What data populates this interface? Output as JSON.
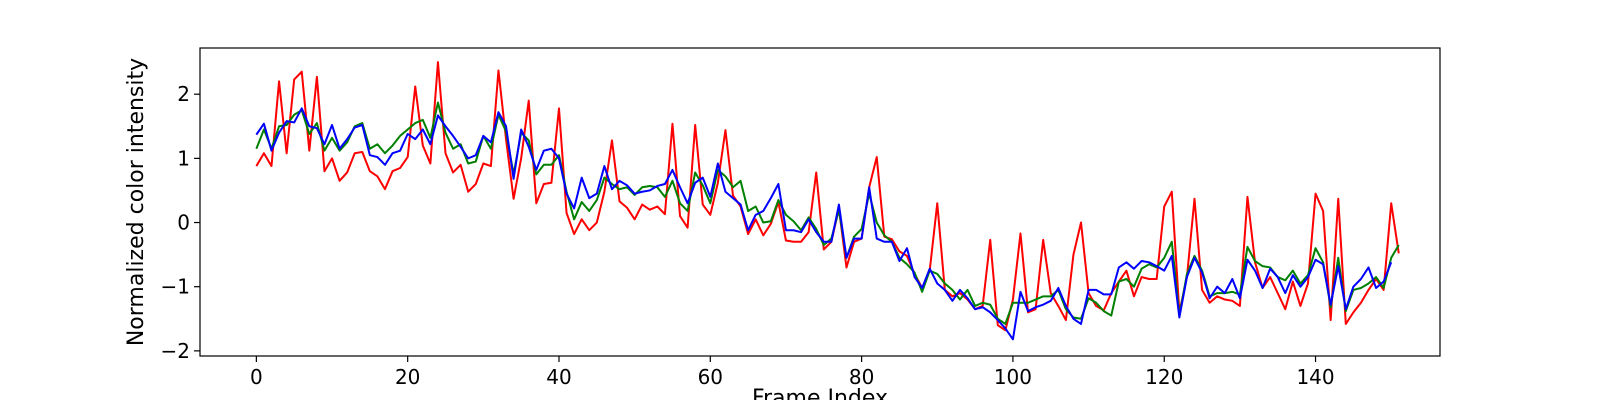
{
  "chart_data": {
    "type": "line",
    "title": "",
    "xlabel": "Frame Index",
    "ylabel": "Normalized color intensity",
    "xlim": [
      -7.45,
      156.45
    ],
    "ylim": [
      -2.08,
      2.72
    ],
    "xticks": [
      0,
      20,
      40,
      60,
      80,
      100,
      120,
      140
    ],
    "yticks": [
      -2,
      -1,
      0,
      1,
      2
    ],
    "grid": false,
    "legend": "none",
    "x_range": [
      0,
      149
    ],
    "series": [
      {
        "color": "#ff0000",
        "values": [
          0.88,
          1.08,
          0.88,
          2.2,
          1.08,
          2.23,
          2.35,
          1.12,
          2.27,
          0.8,
          1.0,
          0.65,
          0.78,
          1.08,
          1.1,
          0.8,
          0.72,
          0.52,
          0.8,
          0.85,
          1.02,
          2.12,
          1.2,
          0.92,
          2.5,
          1.08,
          0.78,
          0.9,
          0.48,
          0.6,
          0.92,
          0.88,
          2.37,
          1.3,
          0.37,
          1.0,
          1.9,
          0.3,
          0.6,
          0.62,
          1.78,
          0.15,
          -0.18,
          0.05,
          -0.12,
          0.0,
          0.48,
          1.28,
          0.33,
          0.23,
          0.05,
          0.28,
          0.2,
          0.25,
          0.13,
          1.54,
          0.1,
          -0.08,
          1.52,
          0.28,
          0.12,
          0.62,
          1.44,
          0.42,
          0.25,
          -0.18,
          0.05,
          -0.2,
          -0.02,
          0.32,
          -0.28,
          -0.3,
          -0.3,
          -0.15,
          0.78,
          -0.42,
          -0.3,
          0.22,
          -0.7,
          -0.3,
          -0.25,
          0.55,
          1.02,
          -0.22,
          -0.26,
          -0.45,
          -0.52,
          -0.8,
          -1.02,
          -0.75,
          0.3,
          -1.05,
          -1.15,
          -1.1,
          -1.2,
          -1.35,
          -1.3,
          -0.27,
          -1.6,
          -1.68,
          -1.2,
          -0.17,
          -1.4,
          -1.35,
          -0.27,
          -1.1,
          -1.3,
          -1.52,
          -0.5,
          0.0,
          -1.1,
          -1.3,
          -1.37,
          -1.1,
          -0.92,
          -0.75,
          -1.15,
          -0.85,
          -0.88,
          -0.88,
          0.25,
          0.48,
          -1.4,
          -0.85,
          0.37,
          -1.05,
          -1.25,
          -1.15,
          -1.2,
          -1.22,
          -1.3,
          0.4,
          -0.62,
          -1.02,
          -0.85,
          -1.1,
          -1.35,
          -0.92,
          -1.3,
          -0.95,
          0.45,
          0.18,
          -1.52,
          0.37,
          -1.58,
          -1.4,
          -1.25,
          -1.05,
          -0.88,
          -1.05,
          0.3,
          -0.48
        ]
      },
      {
        "color": "#008000",
        "values": [
          1.15,
          1.45,
          1.15,
          1.5,
          1.52,
          1.68,
          1.75,
          1.38,
          1.55,
          1.12,
          1.32,
          1.12,
          1.25,
          1.5,
          1.55,
          1.15,
          1.22,
          1.08,
          1.2,
          1.35,
          1.45,
          1.55,
          1.6,
          1.32,
          1.87,
          1.4,
          1.15,
          1.22,
          0.92,
          0.95,
          1.35,
          1.15,
          1.68,
          1.42,
          0.75,
          1.4,
          1.28,
          0.75,
          0.9,
          0.9,
          1.05,
          0.48,
          0.05,
          0.32,
          0.18,
          0.35,
          0.7,
          0.6,
          0.52,
          0.55,
          0.43,
          0.55,
          0.57,
          0.55,
          0.4,
          0.65,
          0.3,
          0.18,
          0.78,
          0.58,
          0.3,
          0.82,
          0.72,
          0.55,
          0.65,
          0.18,
          0.25,
          0.0,
          0.02,
          0.35,
          0.12,
          0.02,
          -0.12,
          0.08,
          -0.1,
          -0.35,
          -0.25,
          0.2,
          -0.55,
          -0.22,
          -0.1,
          0.45,
          0.0,
          -0.2,
          -0.3,
          -0.55,
          -0.65,
          -0.78,
          -1.08,
          -0.75,
          -0.8,
          -0.95,
          -1.05,
          -1.2,
          -1.05,
          -1.3,
          -1.25,
          -1.28,
          -1.5,
          -1.58,
          -1.25,
          -1.25,
          -1.25,
          -1.2,
          -1.15,
          -1.15,
          -1.05,
          -1.35,
          -1.48,
          -1.5,
          -1.18,
          -1.25,
          -1.38,
          -1.45,
          -0.92,
          -0.88,
          -1.0,
          -0.72,
          -0.65,
          -0.7,
          -0.55,
          -0.3,
          -1.45,
          -0.8,
          -0.52,
          -0.75,
          -1.15,
          -1.1,
          -1.1,
          -1.08,
          -1.12,
          -0.38,
          -0.6,
          -0.68,
          -0.7,
          -0.85,
          -0.9,
          -0.75,
          -0.95,
          -0.82,
          -0.4,
          -0.62,
          -1.32,
          -0.55,
          -1.38,
          -1.05,
          -1.02,
          -0.95,
          -0.85,
          -1.02,
          -0.55,
          -0.35
        ]
      },
      {
        "color": "#0000ff",
        "values": [
          1.37,
          1.54,
          1.12,
          1.4,
          1.58,
          1.56,
          1.78,
          1.5,
          1.47,
          1.22,
          1.52,
          1.15,
          1.3,
          1.48,
          1.52,
          1.05,
          1.02,
          0.9,
          1.08,
          1.12,
          1.38,
          1.3,
          1.45,
          1.22,
          1.67,
          1.5,
          1.35,
          1.18,
          1.0,
          1.05,
          1.35,
          1.25,
          1.72,
          1.5,
          0.68,
          1.45,
          1.18,
          0.82,
          1.12,
          1.15,
          1.0,
          0.45,
          0.22,
          0.7,
          0.38,
          0.45,
          0.88,
          0.52,
          0.65,
          0.58,
          0.45,
          0.48,
          0.5,
          0.57,
          0.6,
          0.82,
          0.55,
          0.3,
          0.62,
          0.7,
          0.4,
          0.92,
          0.48,
          0.38,
          0.28,
          -0.12,
          0.12,
          0.18,
          0.38,
          0.6,
          -0.12,
          -0.12,
          -0.15,
          0.05,
          -0.15,
          -0.3,
          -0.3,
          0.28,
          -0.55,
          -0.25,
          -0.25,
          0.55,
          -0.25,
          -0.3,
          -0.3,
          -0.6,
          -0.4,
          -0.85,
          -1.02,
          -0.72,
          -0.95,
          -1.05,
          -1.22,
          -1.05,
          -1.18,
          -1.35,
          -1.32,
          -1.4,
          -1.52,
          -1.65,
          -1.82,
          -1.08,
          -1.38,
          -1.32,
          -1.28,
          -1.22,
          -1.02,
          -1.3,
          -1.5,
          -1.58,
          -1.05,
          -1.05,
          -1.12,
          -1.12,
          -0.7,
          -0.62,
          -0.72,
          -0.6,
          -0.62,
          -0.68,
          -0.75,
          -0.52,
          -1.48,
          -0.85,
          -0.55,
          -0.78,
          -1.18,
          -1.0,
          -1.1,
          -0.88,
          -1.18,
          -0.58,
          -0.75,
          -1.02,
          -0.72,
          -0.85,
          -1.1,
          -0.82,
          -1.0,
          -0.85,
          -0.58,
          -0.65,
          -1.28,
          -0.68,
          -1.35,
          -1.0,
          -0.88,
          -0.7,
          -1.02,
          -0.92,
          -0.62
        ]
      }
    ]
  }
}
